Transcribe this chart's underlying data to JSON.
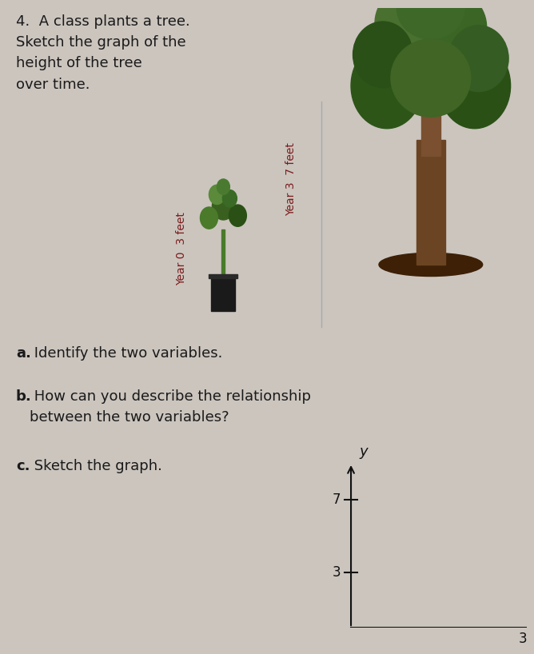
{
  "background_color": "#cbc5be",
  "title_line1": "4.  A class plants a tree.",
  "title_line2": "Sketch the graph of the",
  "title_line3": "height of the tree",
  "title_line4": "over time.",
  "label_year0": "Year 0  3 feet",
  "label_year3": "Year 3  7 feet",
  "part_a_bold": "a.",
  "part_a_text": " Identify the two variables.",
  "part_b_bold": "b.",
  "part_b_text1": " How can you describe the relationship",
  "part_b_text2": "between the two variables?",
  "part_c_bold": "c.",
  "part_c_text": " Sketch the graph.",
  "graph_y_label": "y",
  "graph_tick_3": "3",
  "graph_tick_7": "7",
  "graph_x_end_label": "3",
  "text_color": "#1a1a1a",
  "label_color": "#7b1c1c",
  "axis_color": "#111111",
  "font_size_title": 13,
  "font_size_body": 13,
  "font_size_tick": 12
}
